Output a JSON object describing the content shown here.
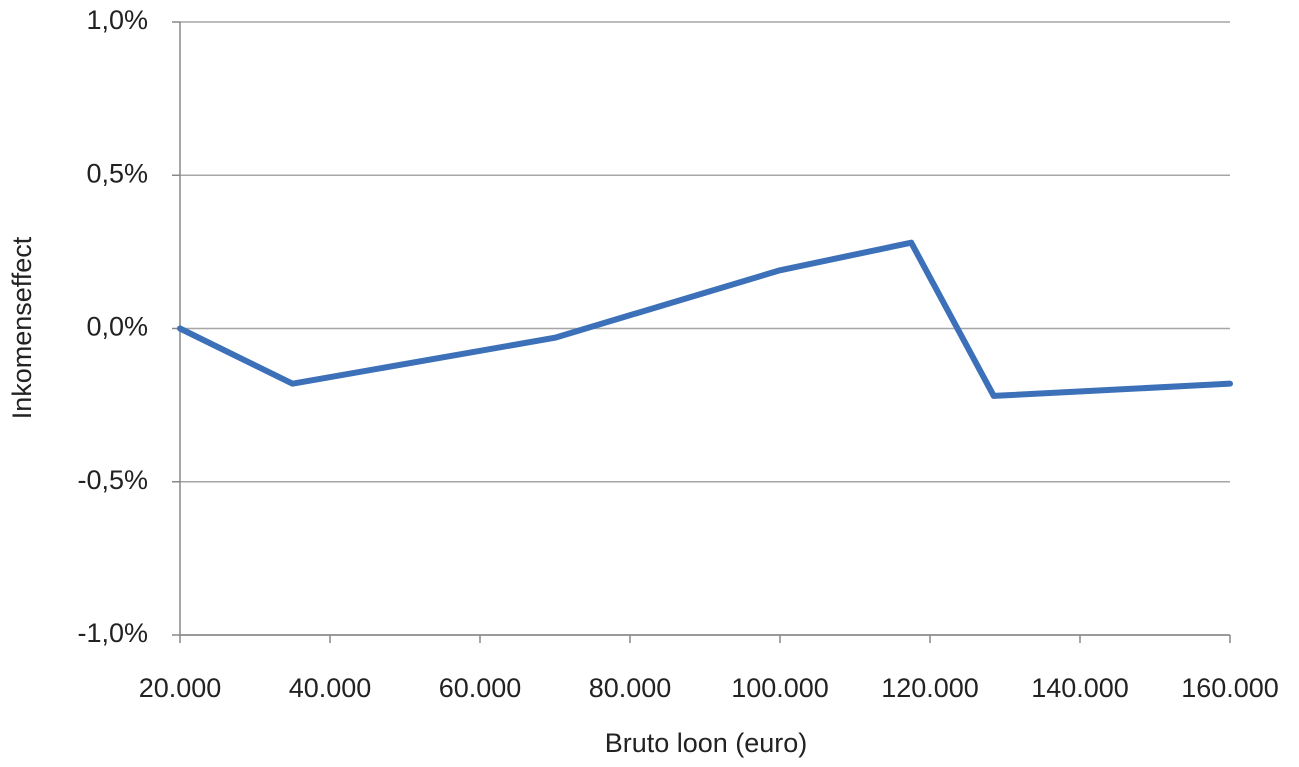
{
  "chart_data": {
    "type": "line",
    "x_label": "Bruto loon  (euro)",
    "y_label": "Inkomenseffect",
    "x": [
      20000,
      35000,
      70000,
      100000,
      117500,
      128500,
      160000
    ],
    "series": [
      {
        "color": "#3c70b8",
        "values": [
          0,
          -0.18,
          -0.03,
          0.19,
          0.28,
          -0.22,
          -0.18
        ]
      }
    ],
    "xlim": [
      20000,
      160000
    ],
    "xticks": [
      {
        "value": 20000,
        "label": "20.000"
      },
      {
        "value": 40000,
        "label": "40.000"
      },
      {
        "value": 60000,
        "label": "60.000"
      },
      {
        "value": 80000,
        "label": "80.000"
      },
      {
        "value": 100000,
        "label": "100.000"
      },
      {
        "value": 120000,
        "label": "120.000"
      },
      {
        "value": 140000,
        "label": "140.000"
      },
      {
        "value": 160000,
        "label": "160.000"
      }
    ],
    "ylim": [
      -1,
      1
    ],
    "yticks": [
      {
        "value": -1,
        "label": "-1,0%"
      },
      {
        "value": -0.5,
        "label": "-0,5%"
      },
      {
        "value": 0,
        "label": "0,0%"
      },
      {
        "value": 0.5,
        "label": "0,5%"
      },
      {
        "value": 1,
        "label": "1,0%"
      }
    ],
    "grid": true
  }
}
